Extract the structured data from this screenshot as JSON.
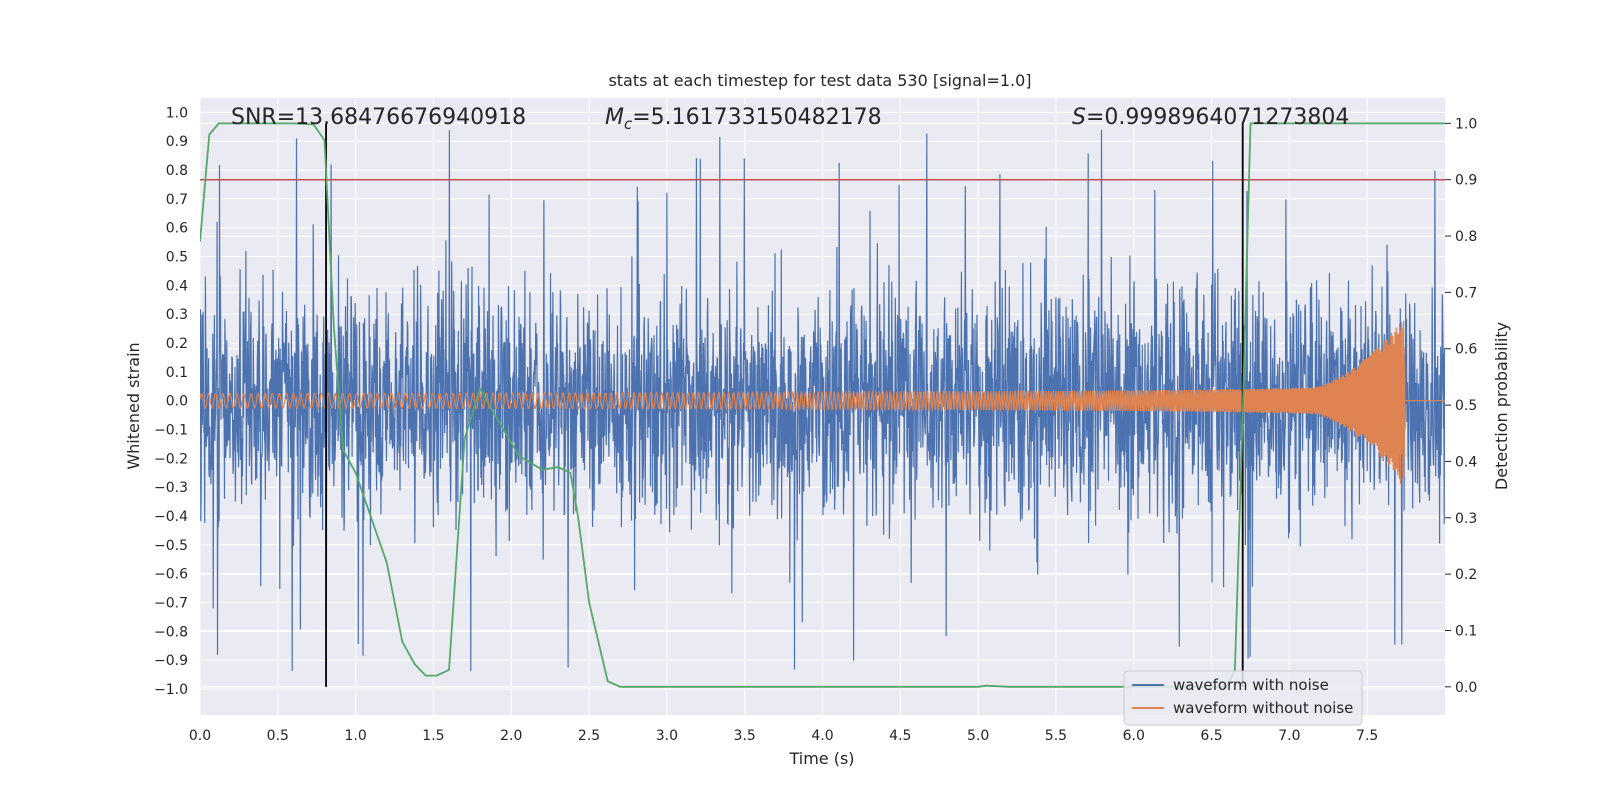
{
  "chart_data": {
    "type": "line",
    "title": "stats at each timestep for test data 530 [signal=1.0]",
    "xlabel": "Time (s)",
    "ylabel_left": "Whitened strain",
    "ylabel_right": "Detection probability",
    "xlim": [
      0.0,
      8.0
    ],
    "ylim_left": [
      -1.09,
      1.05
    ],
    "ylim_right": [
      -0.05,
      1.045
    ],
    "x_ticks": [
      "0.0",
      "0.5",
      "1.0",
      "1.5",
      "2.0",
      "2.5",
      "3.0",
      "3.5",
      "4.0",
      "4.5",
      "5.0",
      "5.5",
      "6.0",
      "6.5",
      "7.0",
      "7.5"
    ],
    "x_tick_values": [
      0.0,
      0.5,
      1.0,
      1.5,
      2.0,
      2.5,
      3.0,
      3.5,
      4.0,
      4.5,
      5.0,
      5.5,
      6.0,
      6.5,
      7.0,
      7.5
    ],
    "y_left_ticks": [
      "1.0",
      "0.9",
      "0.8",
      "0.7",
      "0.6",
      "0.5",
      "0.4",
      "0.3",
      "0.2",
      "0.1",
      "0.0",
      "−0.1",
      "−0.2",
      "−0.3",
      "−0.4",
      "−0.5",
      "−0.6",
      "−0.7",
      "−0.8",
      "−0.9",
      "−1.0"
    ],
    "y_left_tick_values": [
      1.0,
      0.9,
      0.8,
      0.7,
      0.6,
      0.5,
      0.4,
      0.3,
      0.2,
      0.1,
      0.0,
      -0.1,
      -0.2,
      -0.3,
      -0.4,
      -0.5,
      -0.6,
      -0.7,
      -0.8,
      -0.9,
      -1.0
    ],
    "y_right_ticks": [
      "1.0",
      "0.9",
      "0.8",
      "0.7",
      "0.6",
      "0.5",
      "0.4",
      "0.3",
      "0.2",
      "0.1",
      "0.0"
    ],
    "y_right_tick_values": [
      1.0,
      0.9,
      0.8,
      0.7,
      0.6,
      0.5,
      0.4,
      0.3,
      0.2,
      0.1,
      0.0
    ],
    "annotations": {
      "snr": "SNR=13.68476676940918",
      "mc_symbol": "M",
      "mc_sub": "c",
      "mc_value": "=5.161733150482178",
      "s_symbol": "S",
      "s_value": "=0.9998964071273804"
    },
    "threshold": {
      "value": 0.9,
      "axis": "right",
      "color": "#c44e52"
    },
    "vertical_lines": [
      0.81,
      6.7
    ],
    "legend": {
      "placement": "lower-right",
      "entries": [
        {
          "label": "waveform with noise",
          "color": "#4c72b0"
        },
        {
          "label": "waveform without noise",
          "color": "#dd8452"
        }
      ]
    },
    "series": [
      {
        "name": "waveform with noise",
        "axis": "left",
        "color": "#4c72b0",
        "style": "dense noise",
        "t_range": [
          0.0,
          8.0
        ],
        "typical_amplitude": 0.45,
        "peak_max": 0.94,
        "peak_min": -0.99
      },
      {
        "name": "waveform without noise",
        "axis": "left",
        "color": "#dd8452",
        "style": "chirp",
        "t_range": [
          0.0,
          7.75
        ],
        "amplitude_start": 0.025,
        "amplitude_peak": 0.29,
        "merger_time": 7.74,
        "frequency_start_hz": 22,
        "frequency_end_hz": 140
      },
      {
        "name": "detection probability",
        "axis": "right",
        "color": "#55a868",
        "x": [
          0.0,
          0.06,
          0.12,
          0.2,
          0.3,
          0.5,
          0.6,
          0.73,
          0.8,
          0.86,
          0.92,
          1.0,
          1.2,
          1.3,
          1.38,
          1.45,
          1.52,
          1.6,
          1.7,
          1.8,
          1.9,
          2.05,
          2.2,
          2.3,
          2.38,
          2.43,
          2.5,
          2.62,
          2.7,
          3.2,
          4.0,
          5.0,
          5.05,
          5.2,
          6.0,
          6.6,
          6.65,
          6.7,
          6.75,
          6.8,
          7.0,
          8.0
        ],
        "y": [
          0.79,
          0.98,
          1.0,
          1.0,
          1.0,
          1.0,
          1.0,
          0.998,
          0.97,
          0.64,
          0.42,
          0.38,
          0.22,
          0.08,
          0.04,
          0.02,
          0.02,
          0.03,
          0.44,
          0.53,
          0.48,
          0.41,
          0.385,
          0.39,
          0.38,
          0.3,
          0.15,
          0.01,
          0.0,
          0.0,
          0.0,
          0.0,
          0.002,
          0.0,
          0.0,
          0.0,
          0.03,
          0.48,
          1.0,
          1.0,
          1.0,
          1.0
        ]
      }
    ]
  }
}
